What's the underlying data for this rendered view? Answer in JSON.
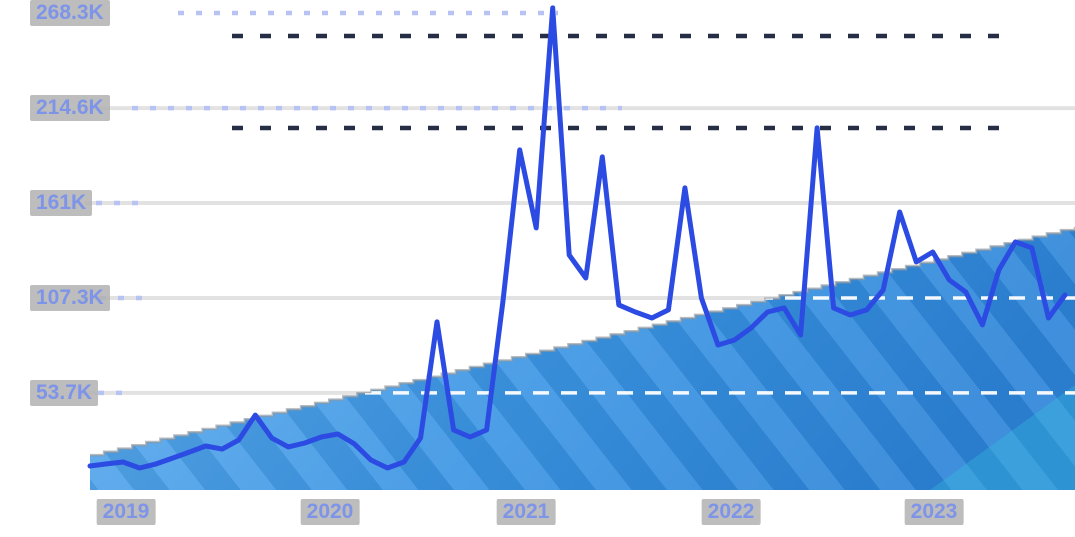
{
  "chart_data": {
    "type": "line",
    "title": "",
    "legend": "none",
    "grid": "horizontal",
    "unit": "K",
    "ylim_k": [
      0,
      280
    ],
    "x_tick_labels": [
      "2019",
      "2020",
      "2021",
      "2022",
      "2023"
    ],
    "y_ticks": [
      {
        "label": "268.3K",
        "value_k": 268.3
      },
      {
        "label": "214.6K",
        "value_k": 214.6
      },
      {
        "label": "161K",
        "value_k": 161.0
      },
      {
        "label": "107.3K",
        "value_k": 107.3
      },
      {
        "label": "53.7K",
        "value_k": 53.7
      }
    ],
    "series": [
      {
        "name": "monthly-interest-line",
        "type": "line",
        "color": "#2c4be2",
        "points_per_year": 12,
        "values_k": [
          12.4,
          13.6,
          14.7,
          11.3,
          13.6,
          16.9,
          20.3,
          23.7,
          22.0,
          27.1,
          41.2,
          28.2,
          23.2,
          25.4,
          28.8,
          30.5,
          24.9,
          15.8,
          11.3,
          14.7,
          28.2,
          93.8,
          32.8,
          28.8,
          32.8,
          106.2,
          191.0,
          146.9,
          271.2,
          131.6,
          118.6,
          187.0,
          103.4,
          99.4,
          96.0,
          100.6,
          169.5,
          107.3,
          80.8,
          83.6,
          90.4,
          99.4,
          101.7,
          86.4,
          203.4,
          101.7,
          97.7,
          100.6,
          111.9,
          155.9,
          127.7,
          133.3,
          117.5,
          110.7,
          92.1,
          123.2,
          139.0,
          135.6,
          96.0,
          109.0
        ]
      },
      {
        "name": "trend-wedge-area",
        "type": "area",
        "shape": "linear-ramp",
        "hatched": true,
        "stepped_edge": true,
        "start_value_k": 18.6,
        "end_value_k": 147.5
      }
    ]
  },
  "colors": {
    "line": "#2c4be2",
    "wedge_left": "#5fadee",
    "wedge_mid": "#3b95e4",
    "wedge_right": "#2c84d8",
    "wedge_edge": "#8f979e",
    "corner_teal": "#35c4de",
    "grid_gray": "#e2e2e2",
    "dash_white": "#ffffff",
    "dash_navy": "#131c36",
    "dash_blue": "#b7c4f3",
    "label_text": "#7d94e8",
    "label_backdrop": "#b2b2b2"
  }
}
